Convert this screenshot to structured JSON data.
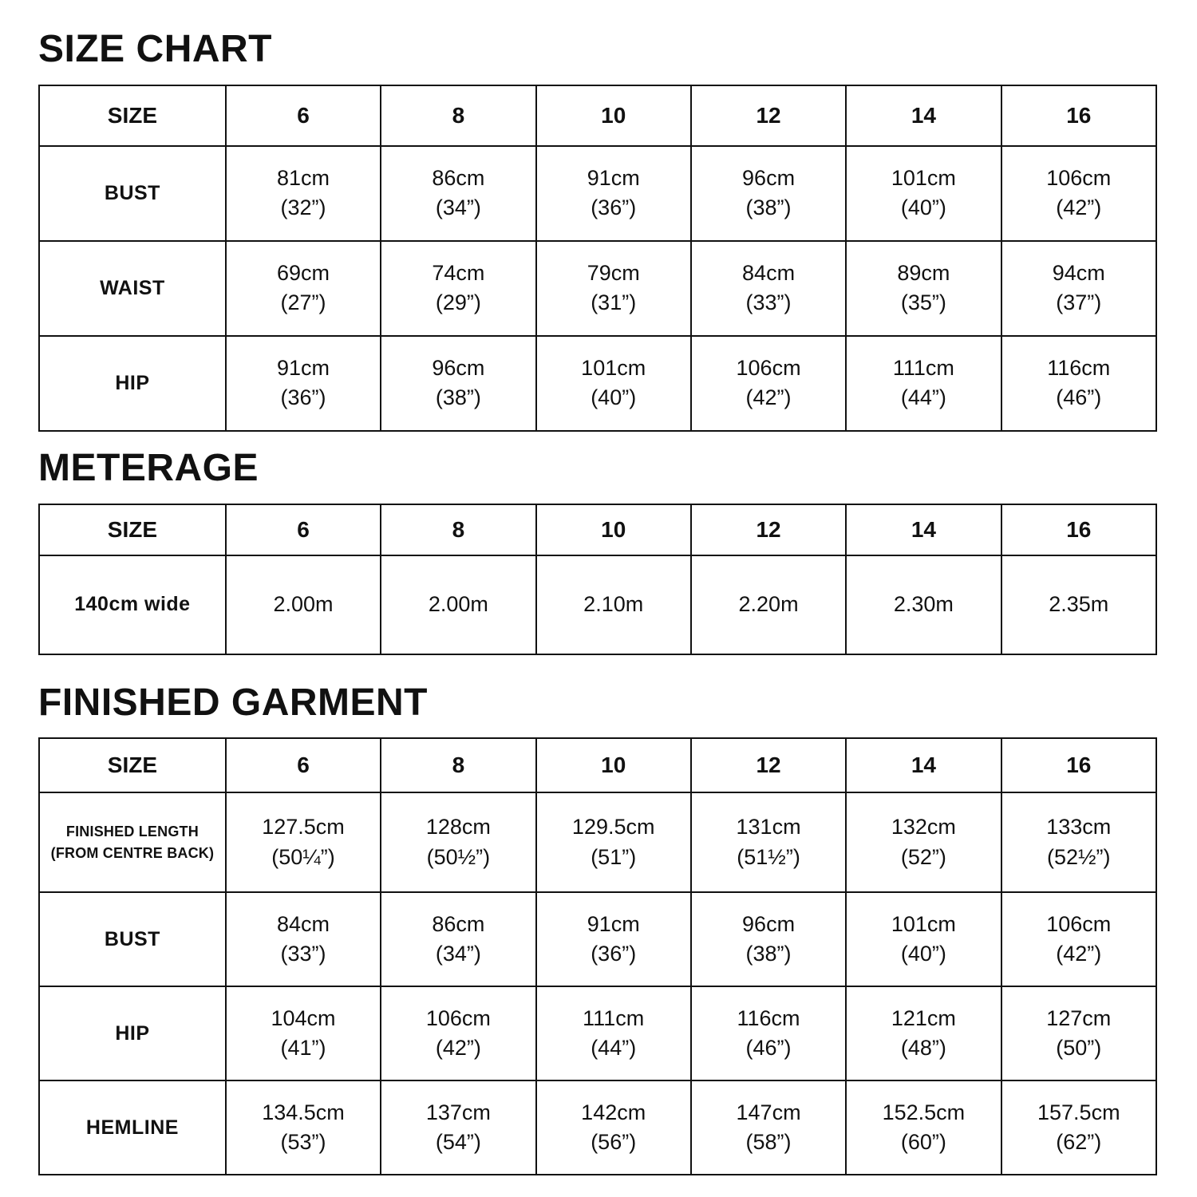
{
  "size_chart": {
    "title": "SIZE CHART",
    "header": [
      "SIZE",
      "6",
      "8",
      "10",
      "12",
      "14",
      "16"
    ],
    "rows": [
      {
        "label": "BUST",
        "cells": [
          "81cm\n(32”)",
          "86cm\n(34”)",
          "91cm\n(36”)",
          "96cm\n(38”)",
          "101cm\n(40”)",
          "106cm\n(42”)"
        ]
      },
      {
        "label": "WAIST",
        "cells": [
          "69cm\n(27”)",
          "74cm\n(29”)",
          "79cm\n(31”)",
          "84cm\n(33”)",
          "89cm\n(35”)",
          "94cm\n(37”)"
        ]
      },
      {
        "label": "HIP",
        "cells": [
          "91cm\n(36”)",
          "96cm\n(38”)",
          "101cm\n(40”)",
          "106cm\n(42”)",
          "111cm\n(44”)",
          "116cm\n(46”)"
        ]
      }
    ]
  },
  "meterage": {
    "title": "METERAGE",
    "header": [
      "SIZE",
      "6",
      "8",
      "10",
      "12",
      "14",
      "16"
    ],
    "rows": [
      {
        "label": "140cm wide",
        "cells": [
          "2.00m",
          "2.00m",
          "2.10m",
          "2.20m",
          "2.30m",
          "2.35m"
        ]
      }
    ]
  },
  "finished_garment": {
    "title": "FINISHED GARMENT",
    "header": [
      "SIZE",
      "6",
      "8",
      "10",
      "12",
      "14",
      "16"
    ],
    "rows": [
      {
        "label": "FINISHED LENGTH\n(FROM CENTRE BACK)",
        "cells": [
          "127.5cm\n(50¼”)",
          "128cm\n(50½”)",
          "129.5cm\n(51”)",
          "131cm\n(51½”)",
          "132cm\n(52”)",
          "133cm\n(52½”)"
        ]
      },
      {
        "label": "BUST",
        "cells": [
          "84cm\n(33”)",
          "86cm\n(34”)",
          "91cm\n(36”)",
          "96cm\n(38”)",
          "101cm\n(40”)",
          "106cm\n(42”)"
        ]
      },
      {
        "label": "HIP",
        "cells": [
          "104cm\n(41”)",
          "106cm\n(42”)",
          "111cm\n(44”)",
          "116cm\n(46”)",
          "121cm\n(48”)",
          "127cm\n(50”)"
        ]
      },
      {
        "label": "HEMLINE",
        "cells": [
          "134.5cm\n(53”)",
          "137cm\n(54”)",
          "142cm\n(56”)",
          "147cm\n(58”)",
          "152.5cm\n(60”)",
          "157.5cm\n(62”)"
        ]
      }
    ]
  }
}
